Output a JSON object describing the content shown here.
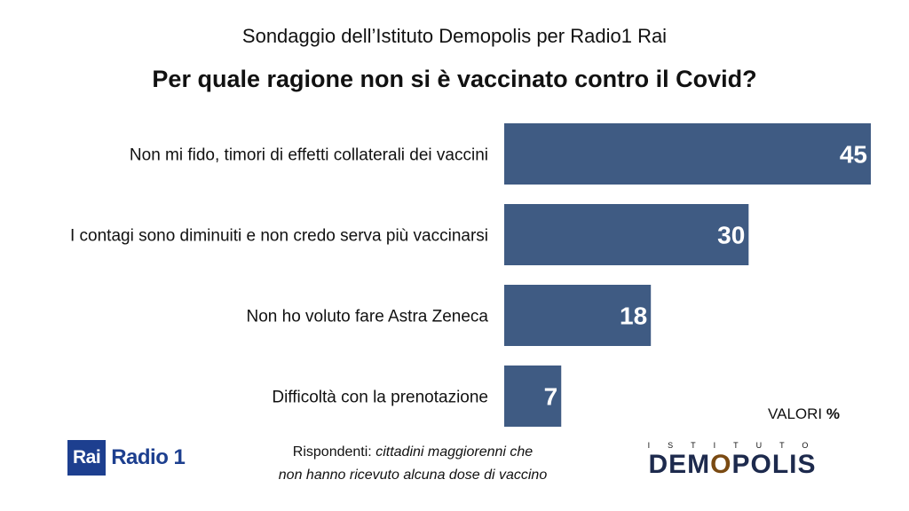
{
  "header": {
    "subtitle": "Sondaggio dell’Istituto Demopolis per Radio1 Rai",
    "title": "Per quale ragione non si è vaccinato contro il Covid?"
  },
  "chart_data": {
    "type": "bar",
    "orientation": "horizontal",
    "categories": [
      "Non mi fido, timori di effetti collaterali dei vaccini",
      "I contagi sono diminuiti e non credo serva più vaccinarsi",
      "Non ho voluto fare Astra Zeneca",
      "Difficoltà con la prenotazione"
    ],
    "values": [
      45,
      30,
      18,
      7
    ],
    "bar_color": "#3f5b83",
    "xlim": [
      0,
      45
    ],
    "grid": false,
    "legend": "none"
  },
  "units": {
    "prefix": "VALORI",
    "symbol": "%"
  },
  "footnote": {
    "lead": "Rispondenti:",
    "line1_italic": "cittadini maggiorenni che",
    "line2_italic": "non hanno ricevuto alcuna dose di vaccino"
  },
  "logos": {
    "rai_box": "Rai",
    "radio": "Radio 1",
    "istituto": "ISTITUTO",
    "demopolis_pre": "DEM",
    "demopolis_o": "O",
    "demopolis_post": "POLIS"
  }
}
